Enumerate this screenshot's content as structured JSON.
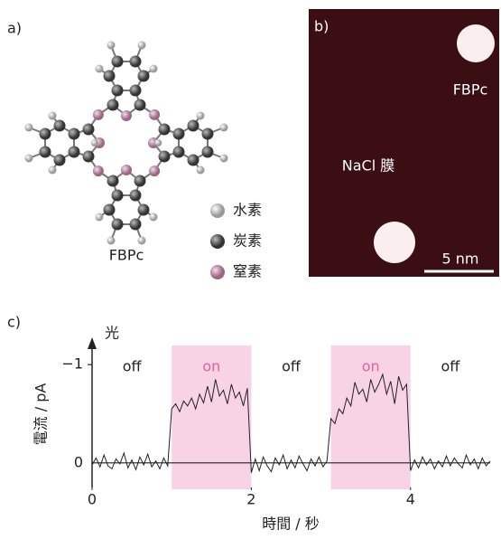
{
  "panels": {
    "a": {
      "label": "a)",
      "molecule": "FBPc",
      "legend": [
        "水素",
        "炭素",
        "窒素"
      ]
    },
    "b": {
      "label": "b)",
      "molecule": "FBPc",
      "substrate": "NaCl 膜",
      "scale": "5 nm"
    }
  },
  "chart_data": {
    "type": "line",
    "label": "c)",
    "xlabel": "時間 / 秒",
    "ylabel": "電流 / pA",
    "xlim": [
      0,
      5
    ],
    "xticks": [
      0,
      2,
      4
    ],
    "ylim": [
      0.25,
      -1.25
    ],
    "yticks": [
      0,
      {
        "value": -1,
        "label": "−1"
      }
    ],
    "color": "#222222",
    "light": {
      "label": "光",
      "on_color": "#f8d3e5",
      "on_text_color": "#e2609c",
      "states": [
        {
          "label": "off",
          "start": 0,
          "end": 1
        },
        {
          "label": "on",
          "start": 1,
          "end": 2
        },
        {
          "label": "off",
          "start": 2,
          "end": 3
        },
        {
          "label": "on",
          "start": 3,
          "end": 4
        },
        {
          "label": "off",
          "start": 4,
          "end": 5
        }
      ]
    },
    "x": [
      0,
      0.05,
      0.1,
      0.15,
      0.2,
      0.25,
      0.3,
      0.35,
      0.4,
      0.45,
      0.5,
      0.55,
      0.6,
      0.65,
      0.7,
      0.75,
      0.8,
      0.85,
      0.9,
      0.95,
      1,
      1.05,
      1.1,
      1.15,
      1.2,
      1.25,
      1.3,
      1.35,
      1.4,
      1.45,
      1.5,
      1.55,
      1.6,
      1.65,
      1.7,
      1.75,
      1.8,
      1.85,
      1.9,
      1.95,
      2,
      2.05,
      2.1,
      2.15,
      2.2,
      2.25,
      2.3,
      2.35,
      2.4,
      2.45,
      2.5,
      2.55,
      2.6,
      2.65,
      2.7,
      2.75,
      2.8,
      2.85,
      2.9,
      2.95,
      3,
      3.05,
      3.1,
      3.15,
      3.2,
      3.25,
      3.3,
      3.35,
      3.4,
      3.45,
      3.5,
      3.55,
      3.6,
      3.65,
      3.7,
      3.75,
      3.8,
      3.85,
      3.9,
      3.95,
      4,
      4.05,
      4.1,
      4.15,
      4.2,
      4.25,
      4.3,
      4.35,
      4.4,
      4.45,
      4.5,
      4.55,
      4.6,
      4.65,
      4.7,
      4.75,
      4.8,
      4.85,
      4.9,
      4.95,
      5
    ],
    "values": [
      0.02,
      -0.05,
      0.04,
      -0.08,
      0.03,
      0.06,
      -0.04,
      0.01,
      -0.1,
      0.05,
      -0.03,
      0.07,
      -0.06,
      0.02,
      -0.09,
      0.04,
      -0.02,
      0.06,
      -0.05,
      0.03,
      -0.55,
      -0.6,
      -0.52,
      -0.63,
      -0.58,
      -0.66,
      -0.55,
      -0.7,
      -0.61,
      -0.78,
      -0.62,
      -0.85,
      -0.68,
      -0.74,
      -0.6,
      -0.8,
      -0.66,
      -0.72,
      -0.58,
      -0.76,
      0.1,
      -0.04,
      0.08,
      -0.06,
      0.03,
      0.09,
      -0.05,
      0.02,
      -0.08,
      0.06,
      -0.03,
      0.05,
      -0.07,
      0.01,
      0.08,
      -0.04,
      0.03,
      -0.06,
      0.04,
      -0.02,
      -0.45,
      -0.4,
      -0.55,
      -0.5,
      -0.66,
      -0.58,
      -0.82,
      -0.7,
      -0.75,
      -0.62,
      -0.85,
      -0.72,
      -0.8,
      -0.9,
      -0.7,
      -0.83,
      -0.6,
      -0.88,
      -0.74,
      -0.8,
      0.08,
      -0.03,
      0.05,
      -0.06,
      0.02,
      -0.04,
      0.06,
      -0.02,
      0.04,
      -0.07,
      0.03,
      -0.05,
      0.01,
      0.05,
      -0.08,
      0.02,
      -0.04,
      0.06,
      -0.05,
      0.03,
      -0.02
    ]
  }
}
